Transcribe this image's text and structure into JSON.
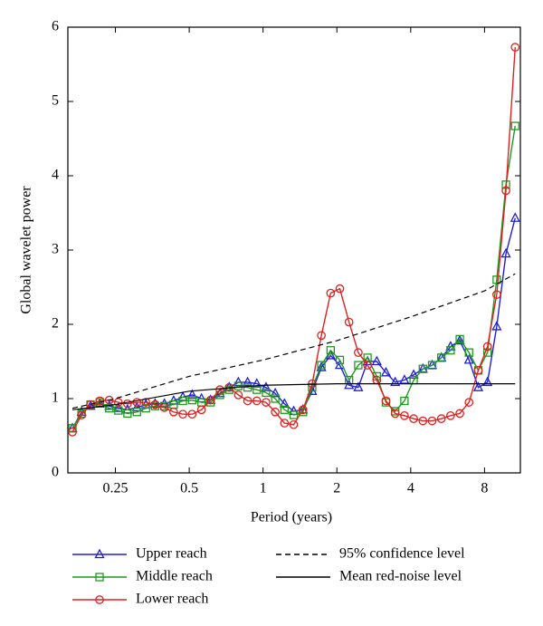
{
  "chart_data": {
    "type": "line",
    "x_label": "Period (years)",
    "y_label": "Global wavelet power",
    "xscale": "log",
    "xlim": [
      0.16,
      11.2
    ],
    "ylim": [
      0,
      6
    ],
    "xticks": [
      0.25,
      0.5,
      1,
      2,
      4,
      8
    ],
    "yticks": [
      0,
      1,
      2,
      3,
      4,
      5,
      6
    ],
    "x": [
      0.167,
      0.182,
      0.198,
      0.216,
      0.236,
      0.257,
      0.28,
      0.306,
      0.333,
      0.363,
      0.396,
      0.432,
      0.471,
      0.514,
      0.561,
      0.611,
      0.667,
      0.727,
      0.793,
      0.865,
      0.943,
      1.028,
      1.121,
      1.223,
      1.333,
      1.454,
      1.586,
      1.729,
      1.886,
      2.056,
      2.242,
      2.445,
      2.667,
      2.908,
      3.171,
      3.458,
      3.771,
      4.112,
      4.485,
      4.891,
      5.333,
      5.816,
      6.342,
      6.916,
      7.542,
      8.225,
      8.969,
      9.781,
      10.667
    ],
    "series": [
      {
        "name": "Upper reach",
        "color": "#1f1fd6",
        "marker": "triangle",
        "values": [
          0.6,
          0.82,
          0.9,
          0.93,
          0.9,
          0.87,
          0.85,
          0.88,
          0.92,
          0.93,
          0.93,
          0.97,
          1.02,
          1.05,
          1.0,
          0.98,
          1.07,
          1.15,
          1.22,
          1.22,
          1.2,
          1.15,
          1.07,
          0.93,
          0.83,
          0.85,
          1.1,
          1.42,
          1.58,
          1.45,
          1.18,
          1.15,
          1.5,
          1.5,
          1.35,
          1.22,
          1.25,
          1.32,
          1.4,
          1.45,
          1.55,
          1.7,
          1.78,
          1.52,
          1.15,
          1.22,
          1.97,
          2.95,
          3.43
        ]
      },
      {
        "name": "Middle reach",
        "color": "#1f9a1f",
        "marker": "square",
        "values": [
          0.6,
          0.8,
          0.92,
          0.95,
          0.87,
          0.84,
          0.8,
          0.82,
          0.87,
          0.9,
          0.9,
          0.92,
          0.97,
          0.98,
          0.95,
          0.95,
          1.05,
          1.12,
          1.17,
          1.15,
          1.12,
          1.08,
          1.0,
          0.85,
          0.78,
          0.82,
          1.15,
          1.45,
          1.65,
          1.52,
          1.25,
          1.45,
          1.55,
          1.3,
          0.95,
          0.83,
          0.97,
          1.25,
          1.4,
          1.45,
          1.55,
          1.65,
          1.8,
          1.62,
          1.38,
          1.62,
          2.6,
          3.88,
          4.67
        ]
      },
      {
        "name": "Lower reach",
        "color": "#e02020",
        "marker": "circle",
        "values": [
          0.55,
          0.78,
          0.92,
          0.97,
          0.98,
          0.95,
          0.93,
          0.95,
          0.95,
          0.92,
          0.88,
          0.82,
          0.79,
          0.79,
          0.85,
          0.98,
          1.12,
          1.15,
          1.05,
          0.97,
          0.97,
          0.95,
          0.82,
          0.67,
          0.65,
          0.85,
          1.2,
          1.85,
          2.42,
          2.48,
          2.03,
          1.62,
          1.45,
          1.25,
          0.97,
          0.8,
          0.77,
          0.73,
          0.7,
          0.7,
          0.73,
          0.77,
          0.8,
          0.95,
          1.38,
          1.7,
          2.4,
          3.8,
          5.73
        ]
      },
      {
        "name": "95% confidence level",
        "color": "#000000",
        "dash": true,
        "x": [
          0.167,
          0.25,
          0.5,
          1,
          2,
          4,
          8,
          10.667
        ],
        "values": [
          0.87,
          1.0,
          1.3,
          1.52,
          1.78,
          2.1,
          2.45,
          2.68
        ]
      },
      {
        "name": "Mean red-noise level",
        "color": "#000000",
        "x": [
          0.167,
          0.25,
          0.5,
          1,
          2,
          4,
          8,
          10.667
        ],
        "values": [
          0.85,
          0.92,
          1.1,
          1.18,
          1.2,
          1.2,
          1.2,
          1.2
        ]
      }
    ]
  }
}
